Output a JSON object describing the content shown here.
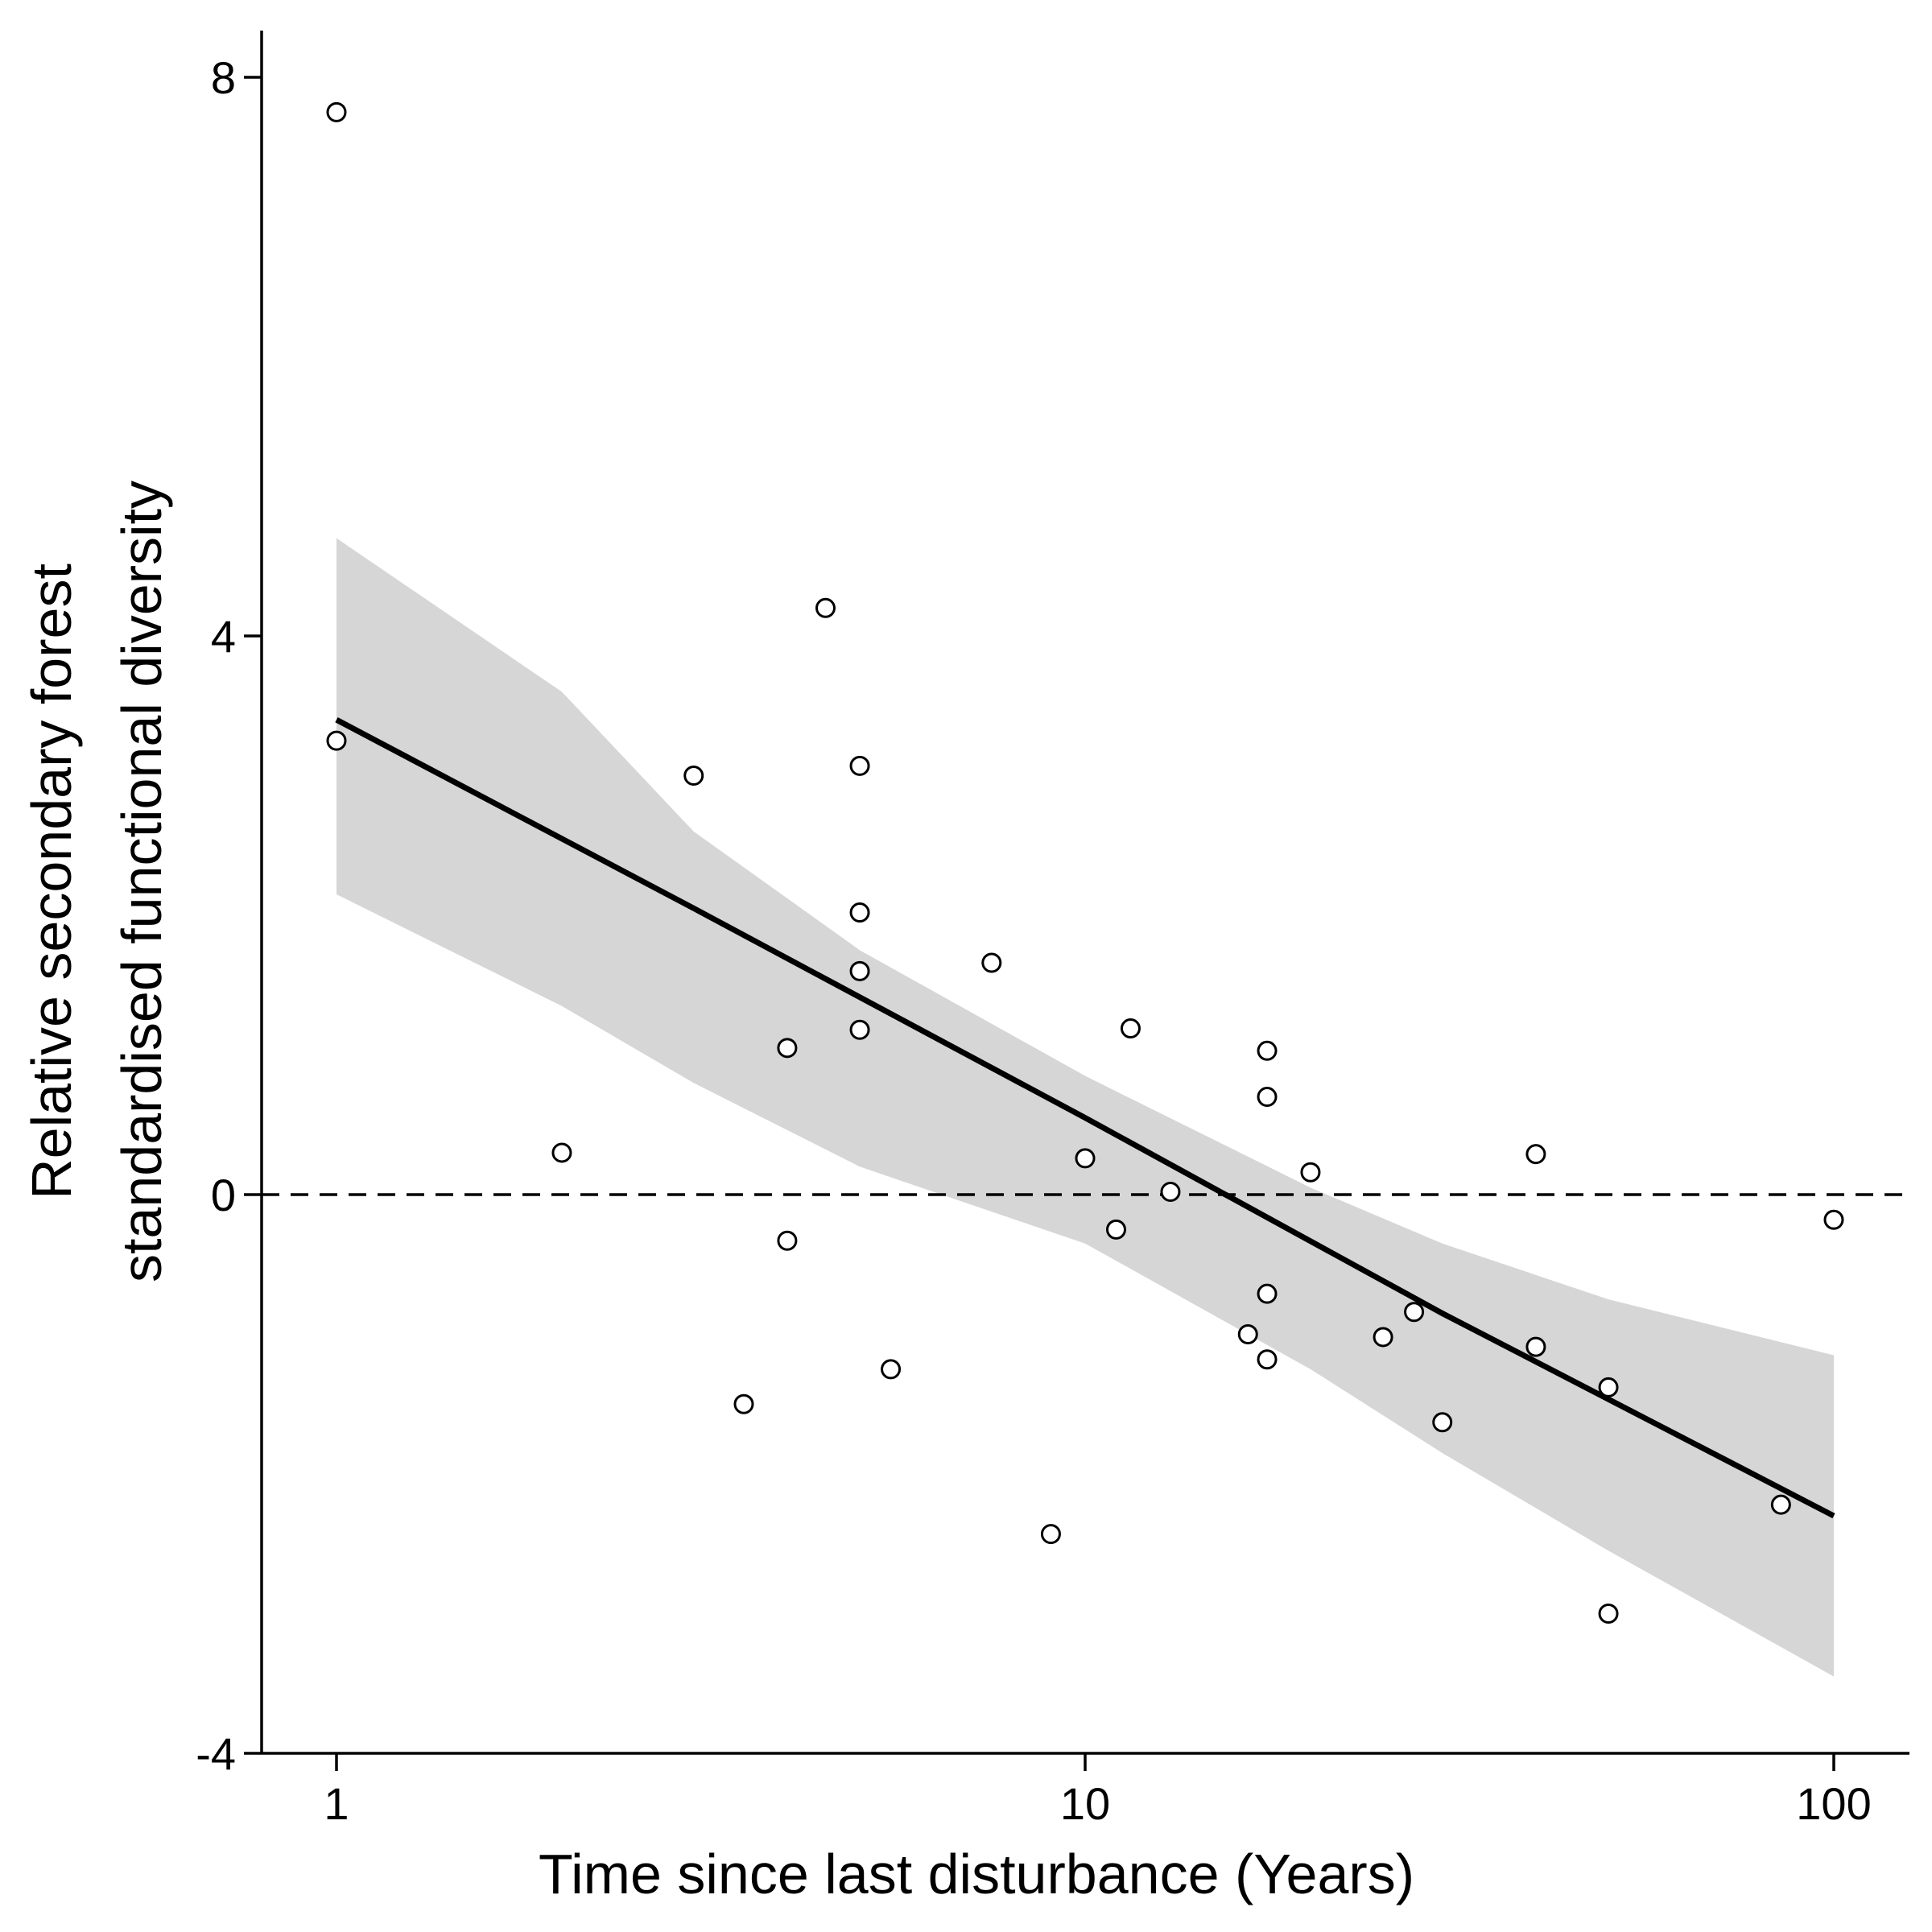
{
  "chart_data": {
    "type": "scatter",
    "x_scale": "log",
    "xlabel": "Time since last disturbance (Years)",
    "ylabel_lines": [
      "Relative secondary forest",
      "standardised functional diversity"
    ],
    "xlim": [
      0.8,
      120
    ],
    "ylim": [
      -4.0,
      8.3
    ],
    "x_ticks": [
      {
        "value": 1,
        "label": "1"
      },
      {
        "value": 10,
        "label": "10"
      },
      {
        "value": 100,
        "label": "100"
      }
    ],
    "y_ticks": [
      {
        "value": -4,
        "label": "-4"
      },
      {
        "value": 0,
        "label": "0"
      },
      {
        "value": 4,
        "label": "4"
      },
      {
        "value": 8,
        "label": "8"
      }
    ],
    "grid": false,
    "reference_line": {
      "y": 0,
      "style": "dashed"
    },
    "colors": {
      "band": "#d6d6d6",
      "line": "#000000",
      "points": "#000000"
    },
    "fit": {
      "x": [
        1,
        3,
        10,
        30,
        100
      ],
      "y": [
        3.4,
        2.05,
        0.55,
        -0.85,
        -2.3
      ]
    },
    "confidence_band": {
      "x": [
        1,
        2,
        3,
        5,
        10,
        20,
        30,
        50,
        100
      ],
      "upper": [
        4.7,
        3.6,
        2.6,
        1.75,
        0.85,
        0.05,
        -0.35,
        -0.75,
        -1.15
      ],
      "lower": [
        2.15,
        1.35,
        0.8,
        0.2,
        -0.35,
        -1.25,
        -1.85,
        -2.55,
        -3.45
      ]
    },
    "points": [
      {
        "x": 1.0,
        "y": 7.75
      },
      {
        "x": 1.0,
        "y": 3.25
      },
      {
        "x": 2.0,
        "y": 0.3
      },
      {
        "x": 3.0,
        "y": 3.0
      },
      {
        "x": 3.5,
        "y": -1.5
      },
      {
        "x": 4.0,
        "y": 1.05
      },
      {
        "x": 4.0,
        "y": -0.33
      },
      {
        "x": 4.5,
        "y": 4.2
      },
      {
        "x": 5.0,
        "y": 3.07
      },
      {
        "x": 5.0,
        "y": 2.02
      },
      {
        "x": 5.0,
        "y": 1.6
      },
      {
        "x": 5.0,
        "y": 1.18
      },
      {
        "x": 5.5,
        "y": -1.25
      },
      {
        "x": 7.5,
        "y": 1.66
      },
      {
        "x": 9.0,
        "y": -2.43
      },
      {
        "x": 10.0,
        "y": 0.26
      },
      {
        "x": 11.0,
        "y": -0.25
      },
      {
        "x": 11.5,
        "y": 1.19
      },
      {
        "x": 13.0,
        "y": 0.02
      },
      {
        "x": 16.5,
        "y": -1.0
      },
      {
        "x": 17.5,
        "y": 1.03
      },
      {
        "x": 17.5,
        "y": 0.7
      },
      {
        "x": 17.5,
        "y": -0.71
      },
      {
        "x": 17.5,
        "y": -1.18
      },
      {
        "x": 20.0,
        "y": 0.16
      },
      {
        "x": 25.0,
        "y": -1.02
      },
      {
        "x": 27.5,
        "y": -0.84
      },
      {
        "x": 30.0,
        "y": -1.63
      },
      {
        "x": 40.0,
        "y": 0.29
      },
      {
        "x": 40.0,
        "y": -1.09
      },
      {
        "x": 50.0,
        "y": -1.38
      },
      {
        "x": 50.0,
        "y": -3.0
      },
      {
        "x": 85.0,
        "y": -2.22
      },
      {
        "x": 100.0,
        "y": -0.18
      }
    ]
  }
}
